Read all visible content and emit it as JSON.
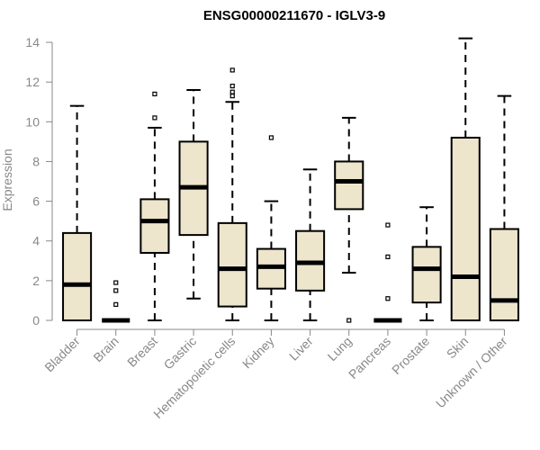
{
  "chart_data": {
    "type": "boxplot",
    "title": "ENSG00000211670 - IGLV3-9",
    "xlabel": "",
    "ylabel": "Expression",
    "ylim": [
      0,
      14.5
    ],
    "yticks": [
      0,
      2,
      4,
      6,
      8,
      10,
      12,
      14
    ],
    "grid": false,
    "box_fill": "#ede5cc",
    "axis_color": "#888888",
    "categories": [
      "Bladder",
      "Brain",
      "Breast",
      "Gastric",
      "Hematopoietic cells",
      "Kidney",
      "Liver",
      "Lung",
      "Pancreas",
      "Prostate",
      "Skin",
      "Unknown / Other"
    ],
    "boxes": [
      {
        "min": 0,
        "q1": 0,
        "median": 1.8,
        "q3": 4.4,
        "max": 10.8,
        "outliers": []
      },
      {
        "min": 0,
        "q1": 0,
        "median": 0,
        "q3": 0,
        "max": 0,
        "outliers": [
          0.8,
          1.5,
          1.9
        ]
      },
      {
        "min": 0,
        "q1": 3.4,
        "median": 5.0,
        "q3": 6.1,
        "max": 9.7,
        "outliers": [
          10.2,
          11.4
        ]
      },
      {
        "min": 1.1,
        "q1": 4.3,
        "median": 6.7,
        "q3": 9.0,
        "max": 11.6,
        "outliers": []
      },
      {
        "min": 0,
        "q1": 0.7,
        "median": 2.6,
        "q3": 4.9,
        "max": 11.0,
        "outliers": [
          11.3,
          11.5,
          11.8,
          12.6
        ]
      },
      {
        "min": 0,
        "q1": 1.6,
        "median": 2.7,
        "q3": 3.6,
        "max": 6.0,
        "outliers": [
          9.2
        ]
      },
      {
        "min": 0,
        "q1": 1.5,
        "median": 2.9,
        "q3": 4.5,
        "max": 7.6,
        "outliers": []
      },
      {
        "min": 2.4,
        "q1": 5.6,
        "median": 7.0,
        "q3": 8.0,
        "max": 10.2,
        "outliers": [
          0
        ]
      },
      {
        "min": 0,
        "q1": 0,
        "median": 0,
        "q3": 0,
        "max": 0,
        "outliers": [
          1.1,
          3.2,
          4.8
        ]
      },
      {
        "min": 0,
        "q1": 0.9,
        "median": 2.6,
        "q3": 3.7,
        "max": 5.7,
        "outliers": []
      },
      {
        "min": 0,
        "q1": 0,
        "median": 2.2,
        "q3": 9.2,
        "max": 14.2,
        "outliers": []
      },
      {
        "min": 0,
        "q1": 0,
        "median": 1.0,
        "q3": 4.6,
        "max": 11.3,
        "outliers": []
      }
    ]
  }
}
